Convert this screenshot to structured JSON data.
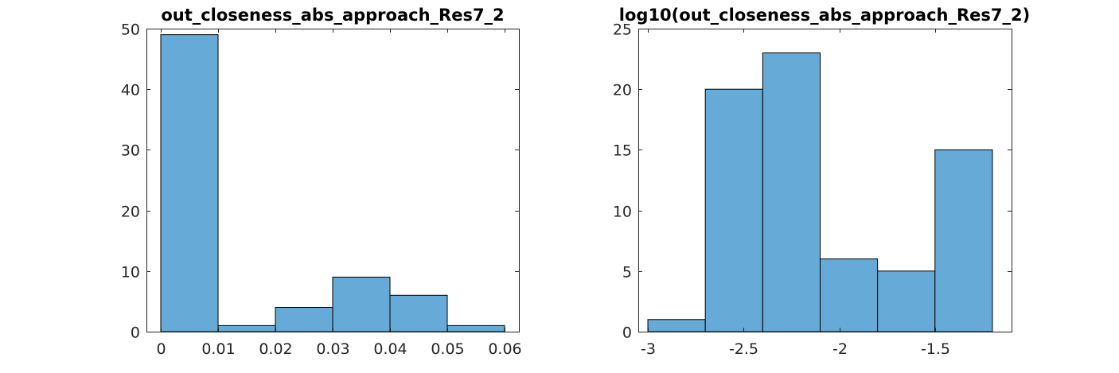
{
  "chart_data": [
    {
      "type": "bar",
      "title": "out_closeness_abs_approach_Res7_2",
      "xlabel": "",
      "ylabel": "",
      "xlim": [
        -0.0025,
        0.0625
      ],
      "ylim": [
        0,
        50
      ],
      "bin_edges": [
        0,
        0.01,
        0.02,
        0.03,
        0.04,
        0.05,
        0.06
      ],
      "values": [
        49,
        1,
        4,
        9,
        6,
        1
      ],
      "xticks": [
        0,
        0.01,
        0.02,
        0.03,
        0.04,
        0.05,
        0.06
      ],
      "xtick_labels": [
        "0",
        "0.01",
        "0.02",
        "0.03",
        "0.04",
        "0.05",
        "0.06"
      ],
      "yticks": [
        0,
        10,
        20,
        30,
        40,
        50
      ],
      "ytick_labels": [
        "0",
        "10",
        "20",
        "30",
        "40",
        "50"
      ],
      "bar_color": "#66aad7",
      "grid": false
    },
    {
      "type": "bar",
      "title": "log10(out_closeness_abs_approach_Res7_2)",
      "xlabel": "",
      "ylabel": "",
      "xlim": [
        -3.05,
        -1.1
      ],
      "ylim": [
        0,
        25
      ],
      "bin_edges": [
        -3.0,
        -2.7,
        -2.4,
        -2.1,
        -1.8,
        -1.5,
        -1.2
      ],
      "values": [
        1,
        20,
        23,
        6,
        5,
        15
      ],
      "xticks": [
        -3,
        -2.5,
        -2,
        -1.5
      ],
      "xtick_labels": [
        "-3",
        "-2.5",
        "-2",
        "-1.5"
      ],
      "yticks": [
        0,
        5,
        10,
        15,
        20,
        25
      ],
      "ytick_labels": [
        "0",
        "5",
        "10",
        "15",
        "20",
        "25"
      ],
      "bar_color": "#66aad7",
      "grid": false
    }
  ]
}
